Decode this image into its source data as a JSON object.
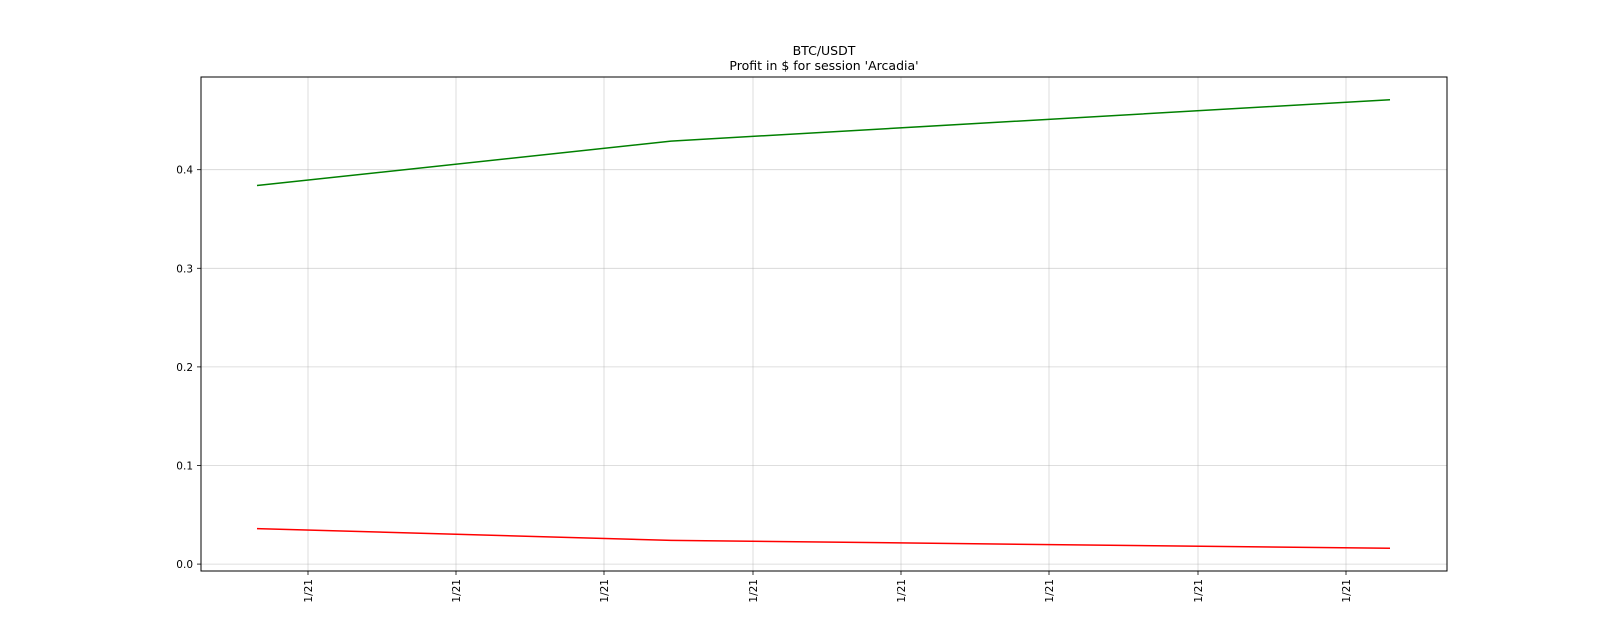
{
  "chart_data": {
    "type": "line",
    "title": "BTC/USDT",
    "subtitle": "Profit in $ for session 'Arcadia'",
    "xlabel": "",
    "ylabel": "",
    "x_tick_labels": [
      "1/21",
      "1/21",
      "1/21",
      "1/21",
      "1/21",
      "1/21",
      "1/21",
      "1/21"
    ],
    "y_ticks": [
      0.0,
      0.1,
      0.2,
      0.3,
      0.4
    ],
    "y_tick_labels": [
      "0.0",
      "0.1",
      "0.2",
      "0.3",
      "0.4"
    ],
    "ylim": [
      -0.007,
      0.494
    ],
    "grid": true,
    "legend": "none",
    "series": [
      {
        "color": "#008000",
        "x_index": [
          0,
          3,
          7
        ],
        "values": [
          0.384,
          0.429,
          0.471
        ]
      },
      {
        "color": "#ff0000",
        "x_index": [
          0,
          3,
          7
        ],
        "values": [
          0.036,
          0.024,
          0.016
        ]
      }
    ]
  }
}
